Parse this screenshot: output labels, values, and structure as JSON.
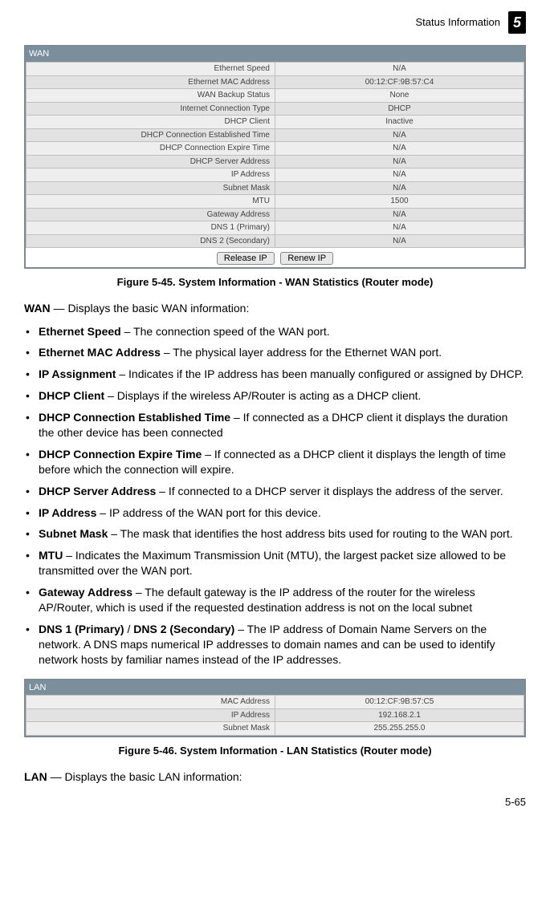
{
  "header": {
    "section_title": "Status Information",
    "chapter_number": "5"
  },
  "wan_panel": {
    "title": "WAN",
    "rows": [
      {
        "label": "Ethernet Speed",
        "value": "N/A"
      },
      {
        "label": "Ethernet MAC Address",
        "value": "00:12:CF:9B:57:C4"
      },
      {
        "label": "WAN Backup Status",
        "value": "None"
      },
      {
        "label": "Internet Connection Type",
        "value": "DHCP"
      },
      {
        "label": "DHCP Client",
        "value": "Inactive"
      },
      {
        "label": "DHCP Connection Established Time",
        "value": "N/A"
      },
      {
        "label": "DHCP Connection Expire Time",
        "value": "N/A"
      },
      {
        "label": "DHCP Server Address",
        "value": "N/A"
      },
      {
        "label": "IP Address",
        "value": "N/A"
      },
      {
        "label": "Subnet Mask",
        "value": "N/A"
      },
      {
        "label": "MTU",
        "value": "1500"
      },
      {
        "label": "Gateway Address",
        "value": "N/A"
      },
      {
        "label": "DNS 1 (Primary)",
        "value": "N/A"
      },
      {
        "label": "DNS 2 (Secondary)",
        "value": "N/A"
      }
    ],
    "buttons": {
      "release": "Release IP",
      "renew": "Renew IP"
    }
  },
  "figure_wan": "Figure 5-45.   System Information - WAN Statistics (Router mode)",
  "wan_intro_term": "WAN",
  "wan_intro_rest": " — Displays the basic WAN information:",
  "bullets": [
    {
      "term": "Ethernet Speed",
      "rest": " – The connection speed of the WAN port."
    },
    {
      "term": "Ethernet MAC Address",
      "rest": " – The physical layer address for the Ethernet WAN port."
    },
    {
      "term": "IP Assignment",
      "rest": " – Indicates if the IP address has been manually configured or assigned by DHCP."
    },
    {
      "term": "DHCP Client",
      "rest": " – Displays if the wireless AP/Router is acting as a DHCP client."
    },
    {
      "term": "DHCP Connection Established Time",
      "rest": " – If connected as a DHCP client it displays the duration the other device has been connected"
    },
    {
      "term": "DHCP Connection Expire Time",
      "rest": " – If connected as a DHCP client it displays the length of time before which the connection will expire."
    },
    {
      "term": "DHCP Server Address",
      "rest": " – If connected to a DHCP server it displays the address of the server."
    },
    {
      "term": "IP Address",
      "rest": " – IP address of the WAN port for this device."
    },
    {
      "term": "Subnet Mask",
      "rest": " – The mask that identifies the host address bits used for routing to the WAN port."
    },
    {
      "term": "MTU",
      "rest": " – Indicates the Maximum Transmission Unit (MTU), the largest packet size allowed to be transmitted over the WAN port."
    },
    {
      "term": "Gateway Address",
      "rest": " – The default gateway is the IP address of the router for the wireless AP/Router, which is used if the requested destination address is not on the local subnet"
    }
  ],
  "dns_bullet": {
    "term1": "DNS 1 (Primary)",
    "slash": " / ",
    "term2": "DNS 2 (Secondary)",
    "rest": " – The IP address of Domain Name Servers on the network. A DNS maps numerical IP addresses to domain names and can be used to identify network hosts by familiar names instead of the IP addresses."
  },
  "lan_panel": {
    "title": "LAN",
    "rows": [
      {
        "label": "MAC Address",
        "value": "00:12:CF:9B:57:C5"
      },
      {
        "label": "IP Address",
        "value": "192.168.2.1"
      },
      {
        "label": "Subnet Mask",
        "value": "255.255.255.0"
      }
    ]
  },
  "figure_lan": "Figure 5-46.   System Information - LAN Statistics (Router mode)",
  "lan_intro_term": "LAN",
  "lan_intro_rest": " — Displays the basic LAN information:",
  "page_number": "5-65"
}
